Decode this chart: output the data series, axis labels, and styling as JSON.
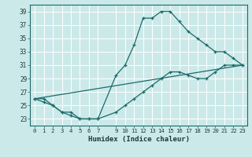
{
  "xlabel": "Humidex (Indice chaleur)",
  "bg_color": "#cce9e9",
  "grid_color": "#ffffff",
  "line_color": "#1a6b6b",
  "xlim": [
    -0.5,
    23.5
  ],
  "ylim": [
    22.0,
    40.0
  ],
  "xticks": [
    0,
    1,
    2,
    3,
    4,
    5,
    6,
    7,
    9,
    10,
    11,
    12,
    13,
    14,
    15,
    16,
    17,
    18,
    19,
    20,
    21,
    22,
    23
  ],
  "yticks": [
    23,
    25,
    27,
    29,
    31,
    33,
    35,
    37,
    39
  ],
  "line1_x": [
    0,
    1,
    2,
    3,
    4,
    5,
    6,
    7,
    9,
    10,
    11,
    12,
    13,
    14,
    15,
    16,
    17,
    18,
    19,
    20,
    21,
    22,
    23
  ],
  "line1_y": [
    26,
    26,
    25,
    24,
    24,
    23,
    23,
    23,
    29.5,
    31,
    34,
    38,
    38,
    39,
    39,
    37.5,
    36,
    35,
    34,
    33,
    33,
    32,
    31
  ],
  "line2_x": [
    0,
    1,
    2,
    3,
    4,
    5,
    6,
    7,
    9,
    10,
    11,
    12,
    13,
    14,
    15,
    16,
    17,
    18,
    19,
    20,
    21,
    22,
    23
  ],
  "line2_y": [
    26,
    25.5,
    25,
    24,
    23.5,
    23,
    23,
    23,
    24,
    25,
    26,
    27,
    28,
    29,
    30,
    30,
    29.5,
    29,
    29,
    30,
    31,
    31,
    31
  ],
  "line3_x": [
    0,
    23
  ],
  "line3_y": [
    26,
    31
  ]
}
